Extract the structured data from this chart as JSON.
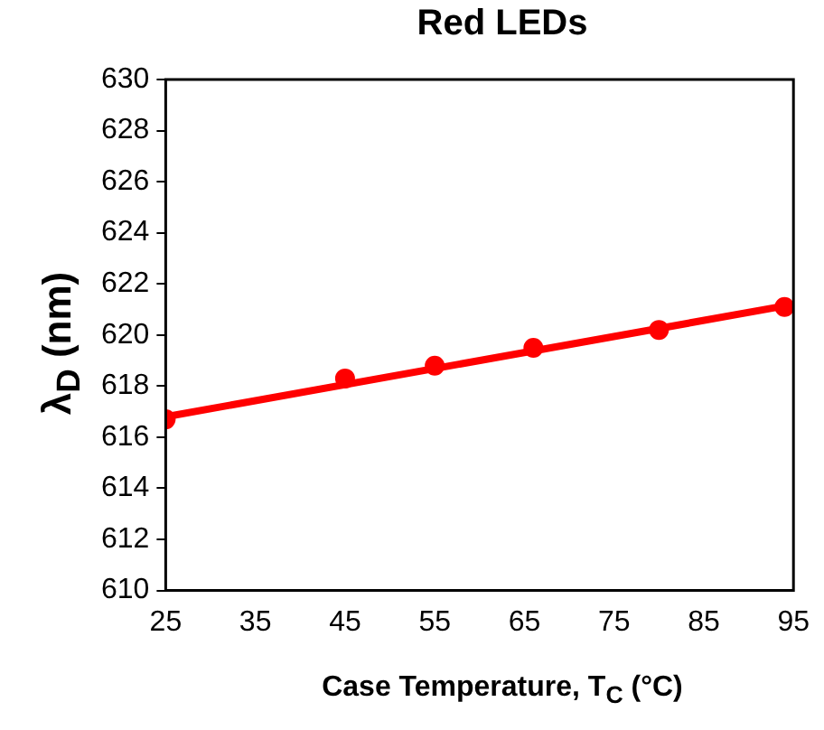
{
  "chart_data": {
    "type": "scatter",
    "title": "Red LEDs",
    "xlabel": "Case Temperature, T$_{C}$ (°C)",
    "ylabel": "λ$_{D}$ (nm)",
    "x": [
      25,
      45,
      55,
      66,
      80,
      94
    ],
    "series": [
      {
        "type": "scatter",
        "color": "#ff0000",
        "values": [
          616.7,
          618.3,
          618.8,
          619.5,
          620.2,
          621.1
        ],
        "marker": "circle"
      },
      {
        "type": "line",
        "color": "#ff0000",
        "x": [
          25,
          95
        ],
        "values": [
          616.8,
          621.2
        ],
        "marker": "none"
      }
    ],
    "xlim": [
      25,
      95
    ],
    "xticks": [
      25,
      35,
      45,
      55,
      65,
      75,
      85,
      95
    ],
    "ylim": [
      610,
      630
    ],
    "yticks": [
      610,
      612,
      614,
      616,
      618,
      620,
      622,
      624,
      626,
      628,
      630
    ],
    "grid": false,
    "legend": false
  }
}
